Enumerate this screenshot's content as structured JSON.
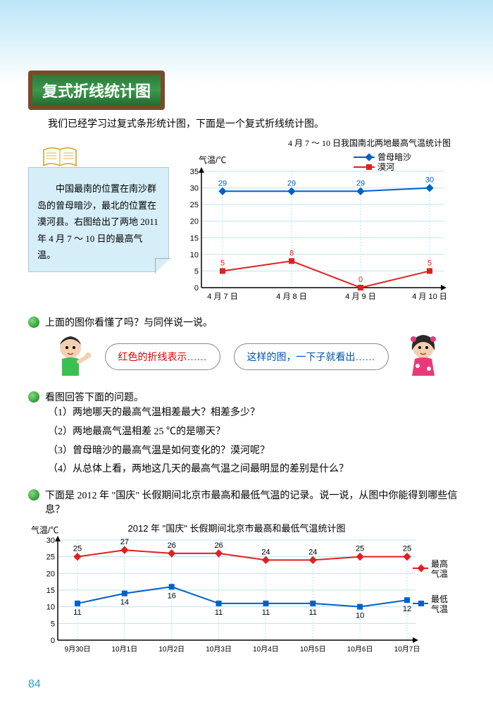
{
  "title": "复式折线统计图",
  "intro": "我们已经学习过复式条形统计图，下面是一个复式折线统计图。",
  "chart1": {
    "title": "4 月 7 ～ 10 日我国南北两地最高气温统计图",
    "type": "line",
    "ylabel": "气温/℃",
    "ylim": [
      0,
      35
    ],
    "ytick_step": 5,
    "categories": [
      "4 月 7 日",
      "4 月 8 日",
      "4 月 9 日",
      "4 月 10 日"
    ],
    "series": [
      {
        "name": "曾母暗沙",
        "color": "#0060c8",
        "marker": "diamond",
        "values": [
          29,
          29,
          29,
          30
        ]
      },
      {
        "name": "漠河",
        "color": "#e02020",
        "marker": "square",
        "values": [
          5,
          8,
          0,
          5
        ]
      }
    ],
    "grid_color": "#bfe3f2",
    "axis_color": "#000000",
    "background": "#ffffff"
  },
  "info_box": "　　中国最南的位置在南沙群岛的曾母暗沙，最北的位置在漠河县。右图给出了两地 2011 年 4 月 7 ～ 10 日的最高气温。",
  "q_bullet1": "上面的图你看懂了吗？与同伴说一说。",
  "speech_red": "红色的折线表示……",
  "speech_blue": "这样的图，一下子就看出……",
  "q_bullet2": "看图回答下面的问题。",
  "questions": [
    "两地哪天的最高气温相差最大？相差多少？",
    "两地最高气温相差 25 ℃的是哪天？",
    "曾母暗沙的最高气温是如何变化的？漠河呢？",
    "从总体上看，两地这几天的最高气温之间最明显的差别是什么？"
  ],
  "q_bullet3": "下面是 2012 年 \"国庆\" 长假期间北京市最高和最低气温的记录。说一说，从图中你能得到哪些信息？",
  "chart2": {
    "title": "2012 年 \"国庆\" 长假期间北京市最高和最低气温统计图",
    "type": "line",
    "ylabel": "气温/℃",
    "ylim": [
      0,
      30
    ],
    "ytick_step": 5,
    "categories": [
      "9月30日",
      "10月1日",
      "10月2日",
      "10月3日",
      "10月4日",
      "10月5日",
      "10月6日",
      "10月7日"
    ],
    "series": [
      {
        "name": "最高气温",
        "color": "#e02020",
        "marker": "diamond",
        "values": [
          25,
          27,
          26,
          26,
          24,
          24,
          25,
          25
        ]
      },
      {
        "name": "最低气温",
        "color": "#0060c8",
        "marker": "square",
        "values": [
          11,
          14,
          16,
          11,
          11,
          11,
          10,
          12
        ]
      }
    ],
    "grid_color": "#bfe3f2",
    "axis_color": "#000000",
    "legend_right": true
  },
  "page_number": "84"
}
